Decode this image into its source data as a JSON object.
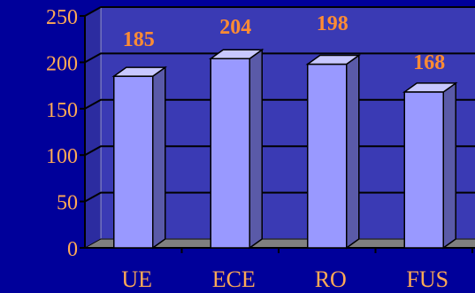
{
  "chart_data": {
    "type": "bar",
    "title": "",
    "xlabel": "",
    "ylabel": "",
    "categories": [
      "UE",
      "ECE",
      "RO",
      "FUS"
    ],
    "values": [
      185,
      204,
      198,
      168
    ],
    "data_labels": [
      "185",
      "204",
      "198",
      "168"
    ],
    "yticks": [
      "0",
      "50",
      "100",
      "150",
      "200",
      "250"
    ],
    "ylim": [
      0,
      250
    ],
    "grid": true,
    "legend": "none",
    "style": "3d"
  },
  "colors": {
    "background": "#00009a",
    "plot_back_wall": "#3a3ab4",
    "floor": "#808080",
    "bar_front": "#9999ff",
    "bar_side": "#5a5aa8",
    "bar_top": "#c8c8ff",
    "axis_text": "#ffaa55",
    "data_label": "#ff8c33",
    "axis_line": "#000000"
  }
}
